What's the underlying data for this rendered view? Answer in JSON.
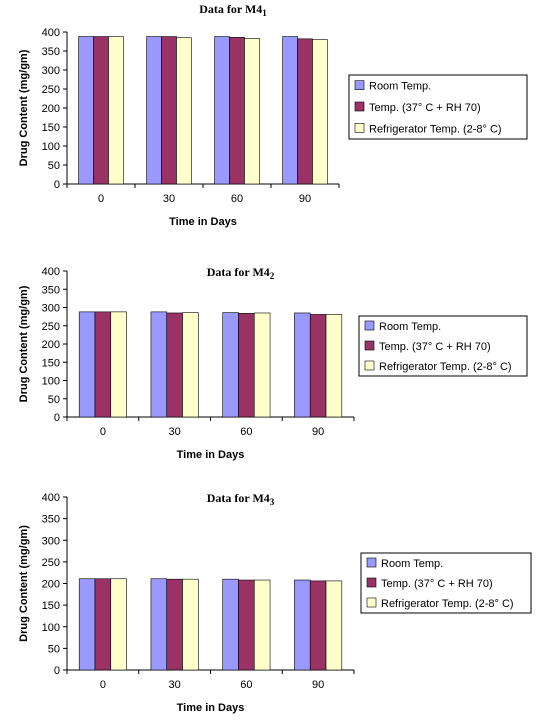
{
  "chart_data": [
    {
      "type": "bar",
      "title": "Data for M4",
      "title_subscript": "1",
      "xlabel": "Time in Days",
      "ylabel": "Drug Content (mg/gm)",
      "ylim": [
        0,
        400
      ],
      "yticks": [
        0,
        50,
        100,
        150,
        200,
        250,
        300,
        350,
        400
      ],
      "categories": [
        "0",
        "30",
        "60",
        "90"
      ],
      "grid": false,
      "legend_position": "right",
      "series": [
        {
          "name": "Room Temp.",
          "color": "#9999FF",
          "values": [
            388,
            388,
            388,
            388
          ]
        },
        {
          "name": "Temp. (37° C + RH 70)",
          "color": "#993366",
          "values": [
            388,
            388,
            386,
            382
          ]
        },
        {
          "name": "Refrigerator Temp. (2-8° C)",
          "color": "#FFFFCC",
          "values": [
            388,
            385,
            383,
            380
          ]
        }
      ]
    },
    {
      "type": "bar",
      "title": "Data for M4",
      "title_subscript": "2",
      "xlabel": "Time in Days",
      "ylabel": "Drug Content (mg/gm)",
      "ylim": [
        0,
        400
      ],
      "yticks": [
        0,
        50,
        100,
        150,
        200,
        250,
        300,
        350,
        400
      ],
      "categories": [
        "0",
        "30",
        "60",
        "90"
      ],
      "grid": false,
      "legend_position": "right",
      "series": [
        {
          "name": "Room Temp.",
          "color": "#9999FF",
          "values": [
            288,
            288,
            286,
            285
          ]
        },
        {
          "name": "Temp. (37° C + RH 70)",
          "color": "#993366",
          "values": [
            288,
            285,
            284,
            281
          ]
        },
        {
          "name": "Refrigerator Temp. (2-8° C)",
          "color": "#FFFFCC",
          "values": [
            288,
            286,
            285,
            281
          ]
        }
      ]
    },
    {
      "type": "bar",
      "title": "Data for M4",
      "title_subscript": "3",
      "xlabel": "Time in Days",
      "ylabel": "Drug Content (mg/gm)",
      "ylim": [
        0,
        400
      ],
      "yticks": [
        0,
        50,
        100,
        150,
        200,
        250,
        300,
        350,
        400
      ],
      "categories": [
        "0",
        "30",
        "60",
        "90"
      ],
      "grid": false,
      "legend_position": "right",
      "series": [
        {
          "name": "Room Temp.",
          "color": "#9999FF",
          "values": [
            211,
            211,
            210,
            208
          ]
        },
        {
          "name": "Temp. (37° C + RH 70)",
          "color": "#993366",
          "values": [
            211,
            210,
            208,
            206
          ]
        },
        {
          "name": "Refrigerator Temp. (2-8° C)",
          "color": "#FFFFCC",
          "values": [
            211,
            210,
            208,
            206
          ]
        }
      ]
    }
  ]
}
